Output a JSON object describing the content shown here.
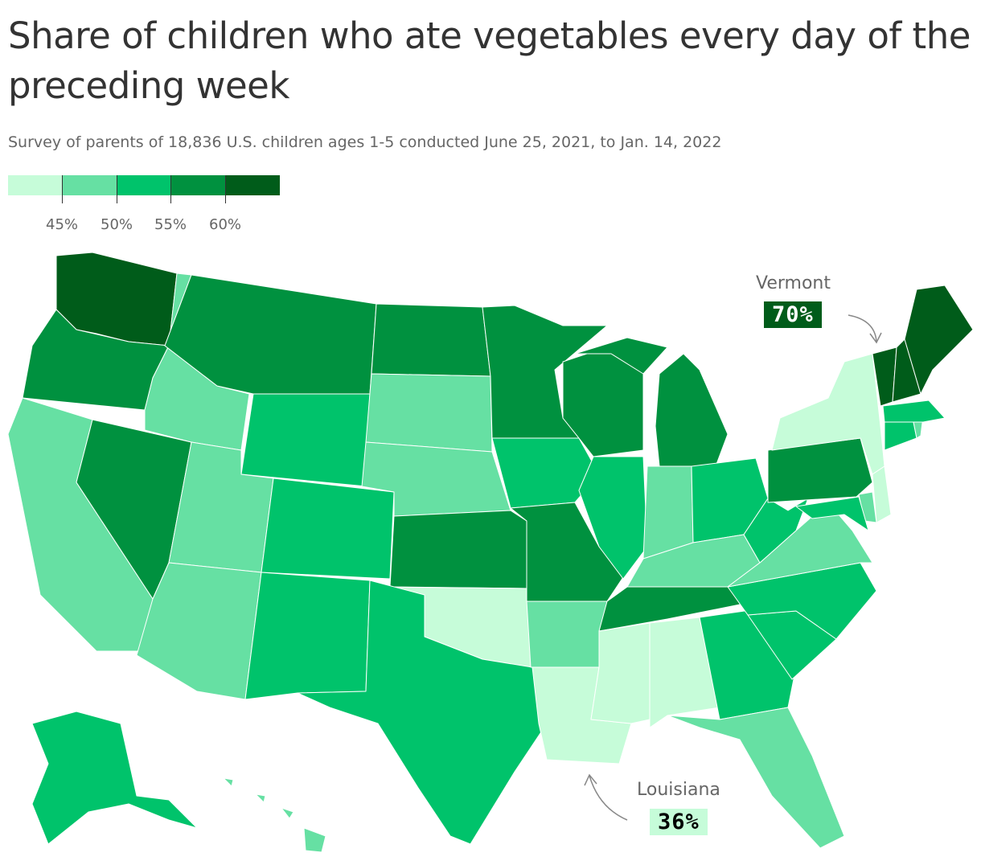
{
  "header": {
    "title": "Share of children who ate vegetables every day of the preceding week",
    "subtitle": "Survey of parents of 18,836 U.S. children ages 1-5 conducted June 25, 2021, to Jan. 14, 2022"
  },
  "legend": {
    "colors": [
      "#c6fcd9",
      "#66e0a3",
      "#00c36b",
      "#00913f",
      "#005c1a"
    ],
    "tick_labels": [
      "45%",
      "50%",
      "55%",
      "60%"
    ]
  },
  "callouts": {
    "vermont": {
      "name": "Vermont",
      "value": "70%"
    },
    "louisiana": {
      "name": "Louisiana",
      "value": "36%"
    }
  },
  "map_data": {
    "scale_breaks": [
      45,
      50,
      55,
      60
    ],
    "states": {
      "WA": 4,
      "OR": 3,
      "CA": 1,
      "NV": 3,
      "ID": 1,
      "MT": 3,
      "WY": 2,
      "UT": 1,
      "AZ": 1,
      "CO": 2,
      "NM": 2,
      "ND": 3,
      "SD": 1,
      "NE": 1,
      "KS": 3,
      "OK": 0,
      "TX": 2,
      "MN": 3,
      "IA": 2,
      "MO": 3,
      "AR": 1,
      "LA": 0,
      "WI": 3,
      "IL": 2,
      "MI": 3,
      "IN": 1,
      "OH": 2,
      "KY": 1,
      "TN": 3,
      "MS": 0,
      "AL": 0,
      "GA": 2,
      "FL": 1,
      "SC": 2,
      "NC": 2,
      "VA": 1,
      "WV": 2,
      "PA": 3,
      "NY": 0,
      "VT": 4,
      "NH": 4,
      "ME": 4,
      "MA": 2,
      "CT": 2,
      "RI": 1,
      "NJ": 0,
      "DE": 1,
      "MD": 2,
      "AK": 2,
      "HI": 1
    }
  }
}
